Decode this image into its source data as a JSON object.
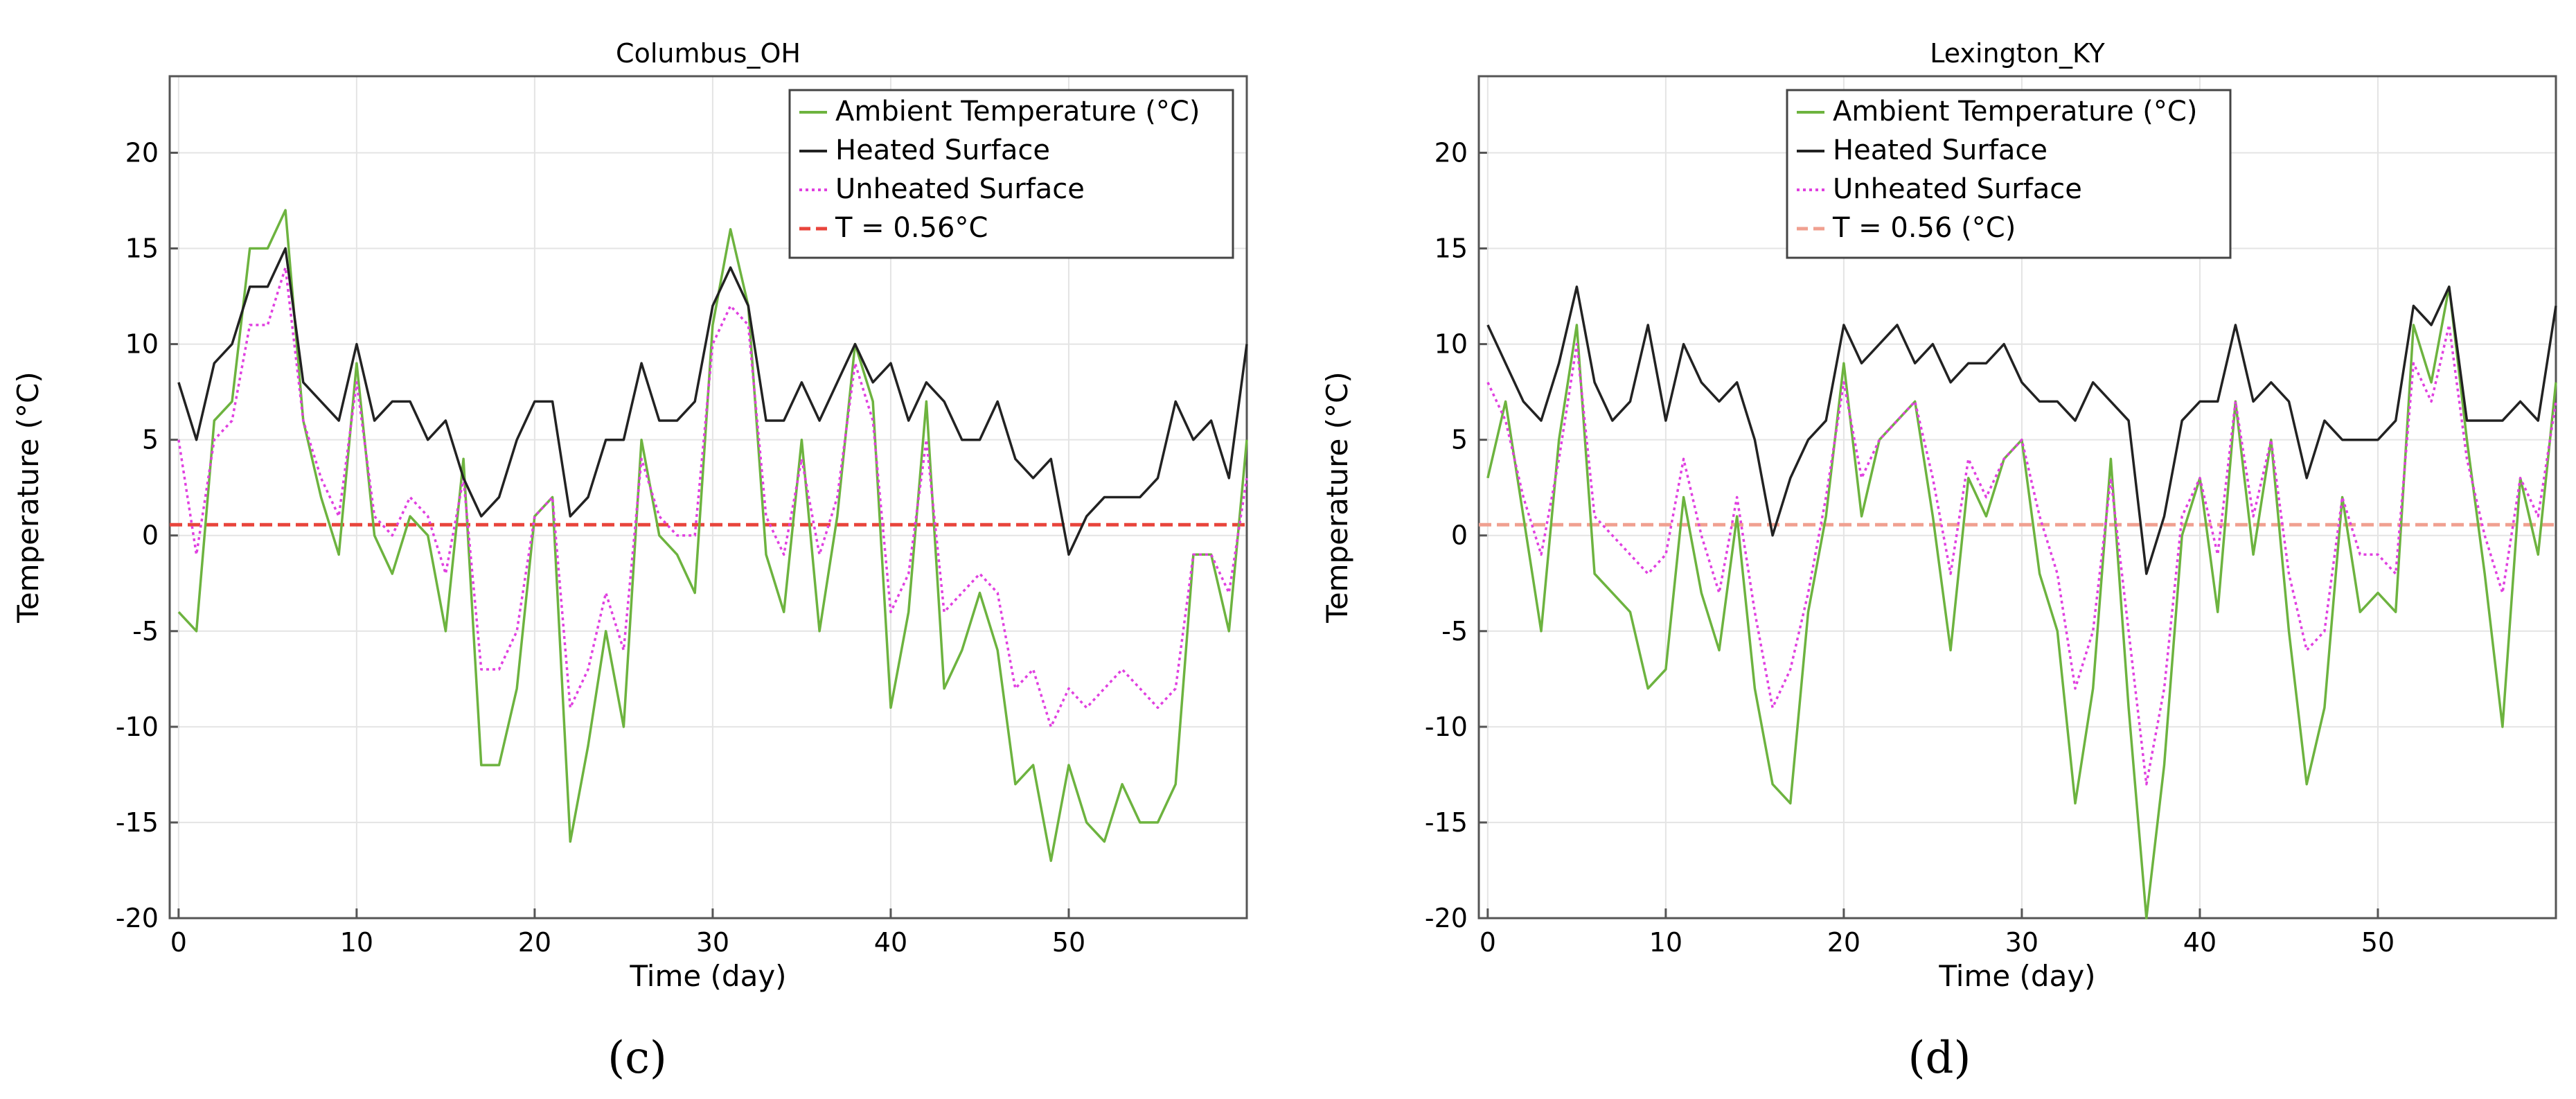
{
  "chart_data": [
    {
      "type": "line",
      "title": "Columbus_OH",
      "xlabel": "Time (day)",
      "ylabel": "Temperature (°C)",
      "xlim": [
        -0.5,
        60
      ],
      "ylim": [
        -20,
        24
      ],
      "xticks": [
        0,
        10,
        20,
        30,
        40,
        50
      ],
      "yticks": [
        -20,
        -15,
        -10,
        -5,
        0,
        5,
        10,
        15,
        20
      ],
      "grid": true,
      "legend": "top-right",
      "caption": "(c)",
      "threshold": {
        "name": "T = 0.56°C",
        "value": 0.56,
        "color": "#e8453c"
      },
      "series": [
        {
          "name": "Ambient Temperature (°C)",
          "color": "#6db33f",
          "style": "solid",
          "x": [
            0,
            1,
            2,
            3,
            4,
            5,
            6,
            7,
            8,
            9,
            10,
            11,
            12,
            13,
            14,
            15,
            16,
            17,
            18,
            19,
            20,
            21,
            22,
            23,
            24,
            25,
            26,
            27,
            28,
            29,
            30,
            31,
            32,
            33,
            34,
            35,
            36,
            37,
            38,
            39,
            40,
            41,
            42,
            43,
            44,
            45,
            46,
            47,
            48,
            49,
            50,
            51,
            52,
            53,
            54,
            55,
            56,
            57,
            58,
            59,
            60
          ],
          "values": [
            -4,
            -5,
            6,
            7,
            15,
            15,
            17,
            6,
            2,
            -1,
            9,
            0,
            -2,
            1,
            0,
            -5,
            4,
            -12,
            -12,
            -8,
            1,
            2,
            -16,
            -11,
            -5,
            -10,
            5,
            0,
            -1,
            -3,
            11,
            16,
            12,
            -1,
            -4,
            5,
            -5,
            1,
            10,
            7,
            -9,
            -4,
            7,
            -8,
            -6,
            -3,
            -6,
            -13,
            -12,
            -17,
            -12,
            -15,
            -16,
            -13,
            -15,
            -15,
            -13,
            -1,
            -1,
            -5,
            5
          ]
        },
        {
          "name": "Heated Surface",
          "color": "#222222",
          "style": "solid",
          "x": [
            0,
            1,
            2,
            3,
            4,
            5,
            6,
            7,
            8,
            9,
            10,
            11,
            12,
            13,
            14,
            15,
            16,
            17,
            18,
            19,
            20,
            21,
            22,
            23,
            24,
            25,
            26,
            27,
            28,
            29,
            30,
            31,
            32,
            33,
            34,
            35,
            36,
            37,
            38,
            39,
            40,
            41,
            42,
            43,
            44,
            45,
            46,
            47,
            48,
            49,
            50,
            51,
            52,
            53,
            54,
            55,
            56,
            57,
            58,
            59,
            60
          ],
          "values": [
            8,
            5,
            9,
            10,
            13,
            13,
            15,
            8,
            7,
            6,
            10,
            6,
            7,
            7,
            5,
            6,
            3,
            1,
            2,
            5,
            7,
            7,
            1,
            2,
            5,
            5,
            9,
            6,
            6,
            7,
            12,
            14,
            12,
            6,
            6,
            8,
            6,
            8,
            10,
            8,
            9,
            6,
            8,
            7,
            5,
            5,
            7,
            4,
            3,
            4,
            -1,
            1,
            2,
            2,
            2,
            3,
            7,
            5,
            6,
            3,
            10
          ]
        },
        {
          "name": "Unheated Surface",
          "color": "#e040e0",
          "style": "dotted",
          "x": [
            0,
            1,
            2,
            3,
            4,
            5,
            6,
            7,
            8,
            9,
            10,
            11,
            12,
            13,
            14,
            15,
            16,
            17,
            18,
            19,
            20,
            21,
            22,
            23,
            24,
            25,
            26,
            27,
            28,
            29,
            30,
            31,
            32,
            33,
            34,
            35,
            36,
            37,
            38,
            39,
            40,
            41,
            42,
            43,
            44,
            45,
            46,
            47,
            48,
            49,
            50,
            51,
            52,
            53,
            54,
            55,
            56,
            57,
            58,
            59,
            60
          ],
          "values": [
            5,
            -1,
            5,
            6,
            11,
            11,
            14,
            6,
            3,
            1,
            8,
            1,
            0,
            2,
            1,
            -2,
            3,
            -7,
            -7,
            -5,
            1,
            2,
            -9,
            -7,
            -3,
            -6,
            4,
            1,
            0,
            0,
            10,
            12,
            11,
            1,
            -1,
            4,
            -1,
            2,
            9,
            6,
            -4,
            -2,
            5,
            -4,
            -3,
            -2,
            -3,
            -8,
            -7,
            -10,
            -8,
            -9,
            -8,
            -7,
            -8,
            -9,
            -8,
            -1,
            -1,
            -3,
            3
          ]
        }
      ]
    },
    {
      "type": "line",
      "title": "Lexington_KY",
      "xlabel": "Time (day)",
      "ylabel": "Temperature (°C)",
      "xlim": [
        -0.5,
        60
      ],
      "ylim": [
        -20,
        24
      ],
      "xticks": [
        0,
        10,
        20,
        30,
        40,
        50
      ],
      "yticks": [
        -20,
        -15,
        -10,
        -5,
        0,
        5,
        10,
        15,
        20
      ],
      "grid": true,
      "legend": "top-left",
      "caption": "(d)",
      "threshold": {
        "name": "T = 0.56 (°C)",
        "value": 0.56,
        "color": "#f0a090"
      },
      "series": [
        {
          "name": "Ambient Temperature (°C)",
          "color": "#6db33f",
          "style": "solid",
          "x": [
            0,
            1,
            2,
            3,
            4,
            5,
            6,
            7,
            8,
            9,
            10,
            11,
            12,
            13,
            14,
            15,
            16,
            17,
            18,
            19,
            20,
            21,
            22,
            23,
            24,
            25,
            26,
            27,
            28,
            29,
            30,
            31,
            32,
            33,
            34,
            35,
            36,
            37,
            38,
            39,
            40,
            41,
            42,
            43,
            44,
            45,
            46,
            47,
            48,
            49,
            50,
            51,
            52,
            53,
            54,
            55,
            56,
            57,
            58,
            59,
            60
          ],
          "values": [
            3,
            7,
            1,
            -5,
            5,
            11,
            -2,
            -3,
            -4,
            -8,
            -7,
            2,
            -3,
            -6,
            1,
            -8,
            -13,
            -14,
            -4,
            1,
            9,
            1,
            5,
            6,
            7,
            1,
            -6,
            3,
            1,
            4,
            5,
            -2,
            -5,
            -14,
            -8,
            4,
            -9,
            -20,
            -12,
            0,
            3,
            -4,
            7,
            -1,
            5,
            -5,
            -13,
            -9,
            2,
            -4,
            -3,
            -4,
            11,
            8,
            13,
            5,
            -2,
            -10,
            3,
            -1,
            8
          ]
        },
        {
          "name": "Heated Surface",
          "color": "#222222",
          "style": "solid",
          "x": [
            0,
            1,
            2,
            3,
            4,
            5,
            6,
            7,
            8,
            9,
            10,
            11,
            12,
            13,
            14,
            15,
            16,
            17,
            18,
            19,
            20,
            21,
            22,
            23,
            24,
            25,
            26,
            27,
            28,
            29,
            30,
            31,
            32,
            33,
            34,
            35,
            36,
            37,
            38,
            39,
            40,
            41,
            42,
            43,
            44,
            45,
            46,
            47,
            48,
            49,
            50,
            51,
            52,
            53,
            54,
            55,
            56,
            57,
            58,
            59,
            60
          ],
          "values": [
            11,
            9,
            7,
            6,
            9,
            13,
            8,
            6,
            7,
            11,
            6,
            10,
            8,
            7,
            8,
            5,
            0,
            3,
            5,
            6,
            11,
            9,
            10,
            11,
            9,
            10,
            8,
            9,
            9,
            10,
            8,
            7,
            7,
            6,
            8,
            7,
            6,
            -2,
            1,
            6,
            7,
            7,
            11,
            7,
            8,
            7,
            3,
            6,
            5,
            5,
            5,
            6,
            12,
            11,
            13,
            6,
            6,
            6,
            7,
            6,
            12
          ]
        },
        {
          "name": "Unheated Surface",
          "color": "#e040e0",
          "style": "dotted",
          "x": [
            0,
            1,
            2,
            3,
            4,
            5,
            6,
            7,
            8,
            9,
            10,
            11,
            12,
            13,
            14,
            15,
            16,
            17,
            18,
            19,
            20,
            21,
            22,
            23,
            24,
            25,
            26,
            27,
            28,
            29,
            30,
            31,
            32,
            33,
            34,
            35,
            36,
            37,
            38,
            39,
            40,
            41,
            42,
            43,
            44,
            45,
            46,
            47,
            48,
            49,
            50,
            51,
            52,
            53,
            54,
            55,
            56,
            57,
            58,
            59,
            60
          ],
          "values": [
            8,
            6,
            2,
            -1,
            4,
            10,
            1,
            0,
            -1,
            -2,
            -1,
            4,
            0,
            -3,
            2,
            -4,
            -9,
            -7,
            -3,
            2,
            8,
            3,
            5,
            6,
            7,
            3,
            -2,
            4,
            2,
            4,
            5,
            1,
            -2,
            -8,
            -5,
            3,
            -5,
            -13,
            -8,
            1,
            3,
            -1,
            7,
            1,
            5,
            -2,
            -6,
            -5,
            2,
            -1,
            -1,
            -2,
            9,
            7,
            11,
            4,
            0,
            -3,
            3,
            1,
            7
          ]
        }
      ]
    }
  ]
}
